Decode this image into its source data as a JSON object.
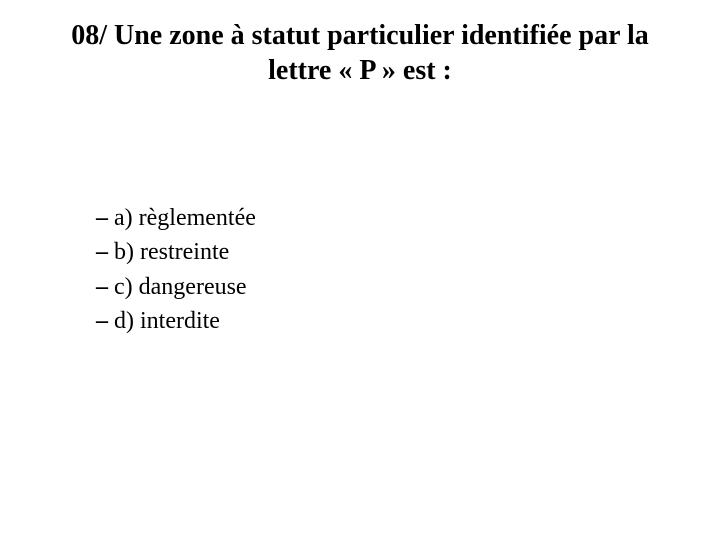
{
  "slide": {
    "title": "08/ Une zone à statut particulier identifiée par la lettre « P » est :",
    "bullet": "–",
    "answers": [
      {
        "label": "a) règlementée"
      },
      {
        "label": "b) restreinte"
      },
      {
        "label": "c) dangereuse"
      },
      {
        "label": "d) interdite"
      }
    ],
    "colors": {
      "background": "#ffffff",
      "text": "#000000"
    },
    "fonts": {
      "family": "Times New Roman",
      "title_size_pt": 28,
      "answer_size_pt": 24,
      "title_weight": "bold",
      "answer_weight": "normal"
    }
  }
}
